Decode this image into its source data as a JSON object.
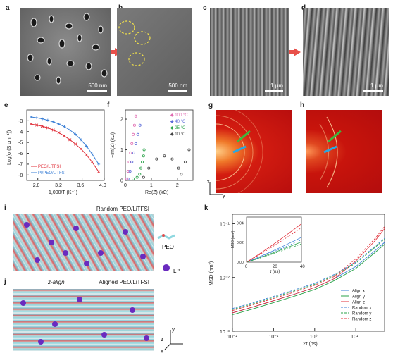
{
  "panels": {
    "a": {
      "label": "a",
      "scale": "500 nm"
    },
    "b": {
      "label": "b",
      "scale": "500 nm"
    },
    "c": {
      "label": "c",
      "scale": "1 μm"
    },
    "d": {
      "label": "d",
      "scale": "1 μm"
    },
    "e": {
      "label": "e"
    },
    "f": {
      "label": "f"
    },
    "g": {
      "label": "g"
    },
    "h": {
      "label": "h"
    },
    "i": {
      "label": "i",
      "title": "Random PEO/LiTFSI"
    },
    "j": {
      "label": "j",
      "title": "Aligned PEO/LiTFSI",
      "align_label": "z-align"
    },
    "k": {
      "label": "k"
    }
  },
  "legend_ij": {
    "peo": "PEO",
    "li": "Li⁺"
  },
  "axes_ij": {
    "y": "y",
    "z": "z",
    "x": "x"
  },
  "axes_gh": {
    "x": "x",
    "y": "y"
  },
  "chart_data": [
    {
      "id": "e",
      "type": "line",
      "xlabel": "1,000/T (K⁻¹)",
      "ylabel": "Log(σ (S cm⁻¹))",
      "xlim": [
        2.6,
        4.0
      ],
      "ylim": [
        -8.5,
        -2
      ],
      "xticks": [
        "2.8",
        "3.2",
        "3.6",
        "4.0"
      ],
      "yticks": [
        "-3",
        "-4",
        "-5",
        "-6",
        "-7",
        "-8"
      ],
      "series": [
        {
          "name": "PEO/LiTFSI",
          "color": "#e0303a",
          "x": [
            2.68,
            2.78,
            2.88,
            2.98,
            3.08,
            3.18,
            3.28,
            3.38,
            3.48,
            3.58,
            3.68,
            3.78,
            3.9
          ],
          "y": [
            -3.3,
            -3.4,
            -3.5,
            -3.65,
            -3.85,
            -4.1,
            -4.4,
            -4.75,
            -5.15,
            -5.6,
            -6.15,
            -6.8,
            -7.7
          ]
        },
        {
          "name": "PI/PEO/LiTFSI",
          "color": "#3a7fd6",
          "x": [
            2.68,
            2.78,
            2.88,
            2.98,
            3.08,
            3.18,
            3.28,
            3.38,
            3.48,
            3.58,
            3.68,
            3.78,
            3.9
          ],
          "y": [
            -2.65,
            -2.72,
            -2.82,
            -2.95,
            -3.1,
            -3.3,
            -3.55,
            -3.85,
            -4.25,
            -4.75,
            -5.35,
            -6.05,
            -7.0
          ]
        }
      ]
    },
    {
      "id": "f",
      "type": "scatter",
      "xlabel": "Re(Z) (kΩ)",
      "ylabel": "−Im(Z) (kΩ)",
      "xlim": [
        0,
        2.6
      ],
      "ylim": [
        0,
        2.3
      ],
      "xticks": [
        "0",
        "1",
        "2"
      ],
      "yticks": [
        "0",
        "1",
        "2"
      ],
      "series": [
        {
          "name": "100 °C",
          "color": "#e06ab0"
        },
        {
          "name": "40 °C",
          "color": "#5a6ad8"
        },
        {
          "name": "25 °C",
          "color": "#2aa34a"
        },
        {
          "name": "10 °C",
          "color": "#444444"
        }
      ]
    },
    {
      "id": "k",
      "type": "line",
      "xlabel": "2τ (ns)",
      "ylabel": "MSD (nm²)",
      "xscale": "log",
      "yscale": "log",
      "xlim": [
        0.01,
        50
      ],
      "ylim": [
        0.001,
        0.15
      ],
      "xticks": [
        "10⁻²",
        "10⁻¹",
        "10⁰",
        "10¹"
      ],
      "yticks": [
        "10⁻³",
        "10⁻²",
        "10⁻¹"
      ],
      "inset": {
        "xlabel": "τ (ns)",
        "ylabel": "MSD (nm²)",
        "xticks": [
          "0",
          "20",
          "40"
        ],
        "yticks": [
          "0.00",
          "0.02",
          "0.04"
        ]
      },
      "series": [
        {
          "name": "Align x",
          "color": "#3a7fd6",
          "dash": false
        },
        {
          "name": "Align y",
          "color": "#2aa34a",
          "dash": false
        },
        {
          "name": "Align z",
          "color": "#e0303a",
          "dash": false
        },
        {
          "name": "Random x",
          "color": "#3a7fd6",
          "dash": true
        },
        {
          "name": "Random y",
          "color": "#2aa34a",
          "dash": true
        },
        {
          "name": "Random z",
          "color": "#e0303a",
          "dash": true
        }
      ]
    }
  ]
}
